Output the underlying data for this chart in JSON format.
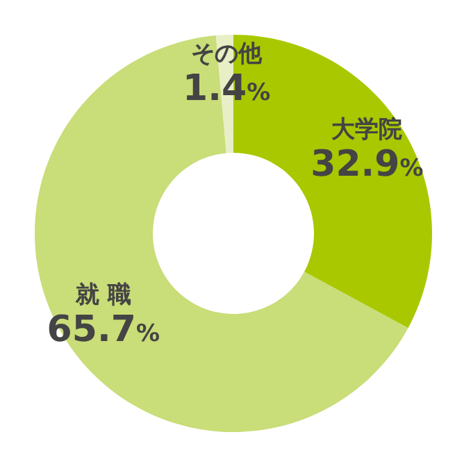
{
  "chart_data": {
    "type": "donut",
    "categories": [
      "大学院",
      "就 職",
      "その他"
    ],
    "values": [
      32.9,
      65.7,
      1.4
    ],
    "value_labels": [
      "32.9%",
      "65.7%",
      "1.4%"
    ],
    "colors": [
      "#a9c800",
      "#c9dd78",
      "#e8efc6"
    ]
  }
}
